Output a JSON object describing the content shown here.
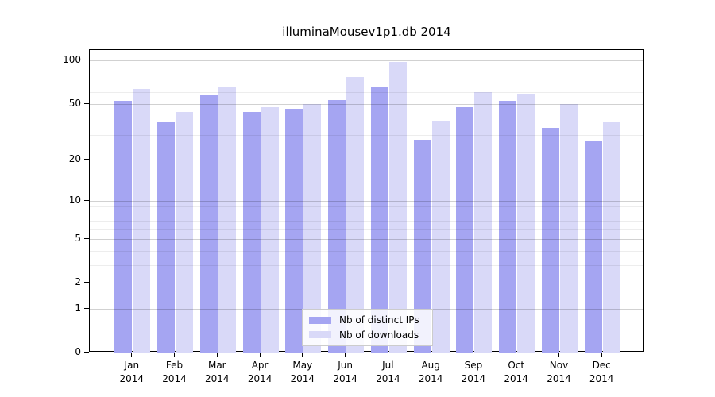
{
  "chart_data": {
    "type": "bar",
    "title": "illuminaMousev1p1.db 2014",
    "yscale": "log1p",
    "ylim": [
      0,
      118
    ],
    "grid": true,
    "y_major_ticks": [
      100,
      50,
      20,
      10,
      5,
      2,
      1,
      0
    ],
    "y_minor_gridlines": [
      3,
      4,
      6,
      7,
      8,
      9,
      30,
      40,
      60,
      70,
      80,
      90
    ],
    "x_categories": [
      "Jan",
      "Feb",
      "Mar",
      "Apr",
      "May",
      "Jun",
      "Jul",
      "Aug",
      "Sep",
      "Oct",
      "Nov",
      "Dec"
    ],
    "x_year": "2014",
    "series": [
      {
        "name": "Nb of distinct IPs",
        "color": "#a5a5f2",
        "values": [
          52,
          37,
          57,
          44,
          46,
          53,
          66,
          28,
          47,
          52,
          34,
          27
        ]
      },
      {
        "name": "Nb of downloads",
        "color": "#d9d9f8",
        "values": [
          63,
          44,
          66,
          47,
          50,
          77,
          97,
          38,
          60,
          59,
          50,
          37
        ]
      }
    ],
    "legend_position": "lower center"
  }
}
